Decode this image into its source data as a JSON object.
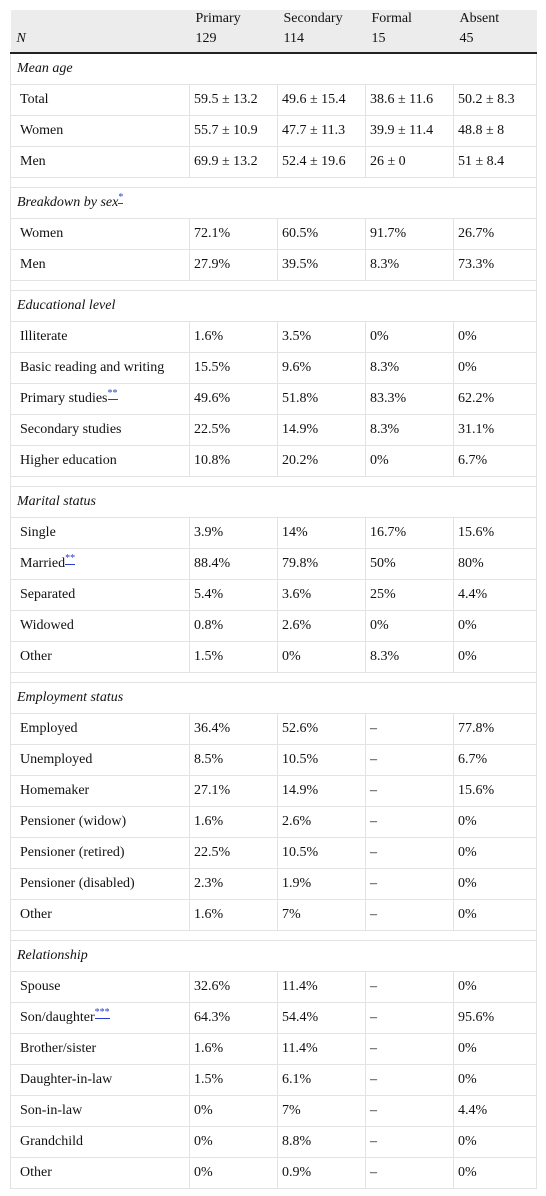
{
  "header": {
    "n_label": "N",
    "columns": [
      {
        "name": "Primary",
        "n": "129"
      },
      {
        "name": "Secondary",
        "n": "114"
      },
      {
        "name": "Formal",
        "n": "15"
      },
      {
        "name": "Absent",
        "n": "45"
      }
    ]
  },
  "sections": [
    {
      "title": "Mean age",
      "note": "",
      "rows": [
        {
          "label": "Total",
          "note": "",
          "values": [
            "59.5 ± 13.2",
            "49.6 ± 15.4",
            "38.6 ± 11.6",
            "50.2 ± 8.3"
          ]
        },
        {
          "label": "Women",
          "note": "",
          "values": [
            "55.7 ± 10.9",
            "47.7 ± 11.3",
            "39.9 ± 11.4",
            "48.8 ± 8"
          ]
        },
        {
          "label": "Men",
          "note": "",
          "values": [
            "69.9 ± 13.2",
            "52.4 ± 19.6",
            "26 ± 0",
            "51 ± 8.4"
          ]
        }
      ]
    },
    {
      "title": "Breakdown by sex",
      "note": "*",
      "rows": [
        {
          "label": "Women",
          "note": "",
          "values": [
            "72.1%",
            "60.5%",
            "91.7%",
            "26.7%"
          ]
        },
        {
          "label": "Men",
          "note": "",
          "values": [
            "27.9%",
            "39.5%",
            "8.3%",
            "73.3%"
          ]
        }
      ]
    },
    {
      "title": "Educational level",
      "note": "",
      "rows": [
        {
          "label": "Illiterate",
          "note": "",
          "values": [
            "1.6%",
            "3.5%",
            "0%",
            "0%"
          ]
        },
        {
          "label": "Basic reading and writing",
          "note": "",
          "values": [
            "15.5%",
            "9.6%",
            "8.3%",
            "0%"
          ]
        },
        {
          "label": "Primary studies",
          "note": "**",
          "values": [
            "49.6%",
            "51.8%",
            "83.3%",
            "62.2%"
          ]
        },
        {
          "label": "Secondary studies",
          "note": "",
          "values": [
            "22.5%",
            "14.9%",
            "8.3%",
            "31.1%"
          ]
        },
        {
          "label": "Higher education",
          "note": "",
          "values": [
            "10.8%",
            "20.2%",
            "0%",
            "6.7%"
          ]
        }
      ]
    },
    {
      "title": "Marital status",
      "note": "",
      "rows": [
        {
          "label": "Single",
          "note": "",
          "values": [
            "3.9%",
            "14%",
            "16.7%",
            "15.6%"
          ]
        },
        {
          "label": "Married",
          "note": "**",
          "values": [
            "88.4%",
            "79.8%",
            "50%",
            "80%"
          ]
        },
        {
          "label": "Separated",
          "note": "",
          "values": [
            "5.4%",
            "3.6%",
            "25%",
            "4.4%"
          ]
        },
        {
          "label": "Widowed",
          "note": "",
          "values": [
            "0.8%",
            "2.6%",
            "0%",
            "0%"
          ]
        },
        {
          "label": "Other",
          "note": "",
          "values": [
            "1.5%",
            "0%",
            "8.3%",
            "0%"
          ]
        }
      ]
    },
    {
      "title": "Employment status",
      "note": "",
      "rows": [
        {
          "label": "Employed",
          "note": "",
          "values": [
            "36.4%",
            "52.6%",
            "–",
            "77.8%"
          ]
        },
        {
          "label": "Unemployed",
          "note": "",
          "values": [
            "8.5%",
            "10.5%",
            "–",
            "6.7%"
          ]
        },
        {
          "label": "Homemaker",
          "note": "",
          "values": [
            "27.1%",
            "14.9%",
            "–",
            "15.6%"
          ]
        },
        {
          "label": "Pensioner (widow)",
          "note": "",
          "values": [
            "1.6%",
            "2.6%",
            "–",
            "0%"
          ]
        },
        {
          "label": "Pensioner (retired)",
          "note": "",
          "values": [
            "22.5%",
            "10.5%",
            "–",
            "0%"
          ]
        },
        {
          "label": "Pensioner (disabled)",
          "note": "",
          "values": [
            "2.3%",
            "1.9%",
            "–",
            "0%"
          ]
        },
        {
          "label": "Other",
          "note": "",
          "values": [
            "1.6%",
            "7%",
            "–",
            "0%"
          ]
        }
      ]
    },
    {
      "title": "Relationship",
      "note": "",
      "rows": [
        {
          "label": "Spouse",
          "note": "",
          "values": [
            "32.6%",
            "11.4%",
            "–",
            "0%"
          ]
        },
        {
          "label": "Son/daughter",
          "note": "***",
          "values": [
            "64.3%",
            "54.4%",
            "–",
            "95.6%"
          ]
        },
        {
          "label": "Brother/sister",
          "note": "",
          "values": [
            "1.6%",
            "11.4%",
            "–",
            "0%"
          ]
        },
        {
          "label": "Daughter-in-law",
          "note": "",
          "values": [
            "1.5%",
            "6.1%",
            "–",
            "0%"
          ]
        },
        {
          "label": "Son-in-law",
          "note": "",
          "values": [
            "0%",
            "7%",
            "–",
            "4.4%"
          ]
        },
        {
          "label": "Grandchild",
          "note": "",
          "values": [
            "0%",
            "8.8%",
            "–",
            "0%"
          ]
        },
        {
          "label": "Other",
          "note": "",
          "values": [
            "0%",
            "0.9%",
            "–",
            "0%"
          ]
        }
      ]
    }
  ]
}
